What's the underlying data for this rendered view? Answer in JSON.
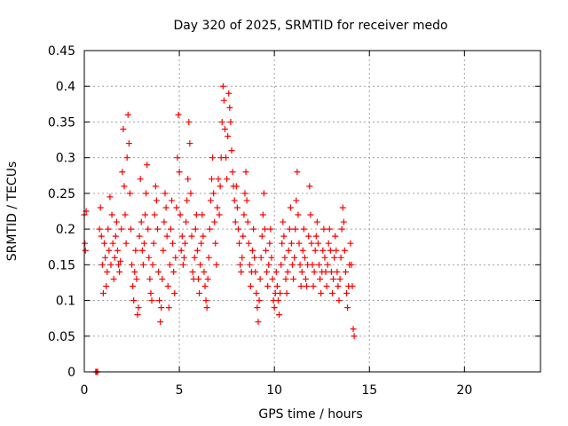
{
  "chart_data": {
    "type": "scatter",
    "title": "Day 320 of 2025, SRMTID for receiver medo",
    "xlabel": "GPS time / hours",
    "ylabel": "SRMTID / TECUs",
    "xlim": [
      0,
      24
    ],
    "ylim": [
      0,
      0.45
    ],
    "x_ticks": [
      0,
      5,
      10,
      15,
      20
    ],
    "x_tick_labels": [
      "0",
      "5",
      "10",
      "15",
      "20"
    ],
    "y_ticks": [
      0,
      0.05,
      0.1,
      0.15,
      0.2,
      0.25,
      0.3,
      0.35,
      0.4,
      0.45
    ],
    "y_tick_labels": [
      "0",
      "0.05",
      "0.1",
      "0.15",
      "0.2",
      "0.25",
      "0.3",
      "0.35",
      "0.4",
      "0.45"
    ],
    "grid": true,
    "marker": "+",
    "color": "#ff0000",
    "series": [
      {
        "name": "SRMTID",
        "x": [
          0.0,
          0.03,
          0.06,
          0.1,
          0.6,
          0.65,
          0.7,
          0.8,
          0.85,
          0.9,
          0.95,
          1.0,
          1.05,
          1.1,
          1.15,
          1.2,
          1.25,
          1.3,
          1.35,
          1.4,
          1.45,
          1.5,
          1.55,
          1.6,
          1.65,
          1.7,
          1.75,
          1.8,
          1.85,
          1.9,
          1.95,
          2.0,
          2.05,
          2.1,
          2.15,
          2.2,
          2.25,
          2.3,
          2.35,
          2.4,
          2.45,
          2.5,
          2.55,
          2.6,
          2.65,
          2.7,
          2.75,
          2.8,
          2.85,
          2.9,
          2.95,
          3.0,
          3.05,
          3.1,
          3.15,
          3.2,
          3.25,
          3.3,
          3.35,
          3.4,
          3.45,
          3.5,
          3.55,
          3.6,
          3.65,
          3.7,
          3.75,
          3.8,
          3.85,
          3.9,
          3.95,
          4.0,
          4.05,
          4.1,
          4.15,
          4.2,
          4.25,
          4.3,
          4.35,
          4.4,
          4.45,
          4.5,
          4.55,
          4.6,
          4.65,
          4.7,
          4.75,
          4.8,
          4.85,
          4.9,
          4.95,
          5.0,
          5.05,
          5.1,
          5.15,
          5.2,
          5.25,
          5.3,
          5.35,
          5.4,
          5.45,
          5.5,
          5.55,
          5.6,
          5.65,
          5.7,
          5.75,
          5.8,
          5.85,
          5.9,
          5.95,
          6.0,
          6.05,
          6.1,
          6.15,
          6.2,
          6.25,
          6.3,
          6.35,
          6.4,
          6.45,
          6.5,
          6.55,
          6.6,
          6.65,
          6.7,
          6.75,
          6.8,
          6.85,
          6.9,
          6.95,
          7.0,
          7.05,
          7.1,
          7.15,
          7.2,
          7.25,
          7.3,
          7.35,
          7.4,
          7.45,
          7.5,
          7.55,
          7.6,
          7.65,
          7.7,
          7.75,
          7.8,
          7.85,
          7.9,
          7.95,
          8.0,
          8.05,
          8.1,
          8.15,
          8.2,
          8.25,
          8.3,
          8.35,
          8.4,
          8.45,
          8.5,
          8.55,
          8.6,
          8.65,
          8.7,
          8.75,
          8.8,
          8.85,
          8.9,
          8.95,
          9.0,
          9.05,
          9.1,
          9.15,
          9.2,
          9.25,
          9.3,
          9.35,
          9.4,
          9.45,
          9.5,
          9.55,
          9.6,
          9.65,
          9.7,
          9.75,
          9.8,
          9.85,
          9.9,
          9.95,
          10.0,
          10.05,
          10.1,
          10.15,
          10.2,
          10.25,
          10.3,
          10.35,
          10.4,
          10.45,
          10.5,
          10.55,
          10.6,
          10.65,
          10.7,
          10.75,
          10.8,
          10.85,
          10.9,
          10.95,
          11.0,
          11.05,
          11.1,
          11.15,
          11.2,
          11.25,
          11.3,
          11.35,
          11.4,
          11.45,
          11.5,
          11.55,
          11.6,
          11.65,
          11.7,
          11.75,
          11.8,
          11.85,
          11.9,
          11.95,
          12.0,
          12.05,
          12.1,
          12.15,
          12.2,
          12.25,
          12.3,
          12.35,
          12.4,
          12.45,
          12.5,
          12.55,
          12.6,
          12.65,
          12.7,
          12.75,
          12.8,
          12.85,
          12.9,
          12.95,
          13.0,
          13.05,
          13.1,
          13.15,
          13.2,
          13.25,
          13.3,
          13.35,
          13.4,
          13.45,
          13.5,
          13.55,
          13.6,
          13.65,
          13.7,
          13.75,
          13.8,
          13.85,
          13.9,
          13.95,
          14.0,
          14.05,
          14.1,
          14.15,
          14.2
        ],
        "y": [
          0.22,
          0.18,
          0.17,
          0.225,
          0.0,
          0.0,
          0.0,
          0.2,
          0.23,
          0.19,
          0.15,
          0.11,
          0.18,
          0.16,
          0.12,
          0.14,
          0.2,
          0.17,
          0.245,
          0.15,
          0.22,
          0.18,
          0.13,
          0.16,
          0.19,
          0.21,
          0.17,
          0.15,
          0.14,
          0.155,
          0.2,
          0.28,
          0.34,
          0.26,
          0.22,
          0.18,
          0.3,
          0.36,
          0.32,
          0.25,
          0.2,
          0.15,
          0.12,
          0.1,
          0.14,
          0.17,
          0.13,
          0.08,
          0.09,
          0.19,
          0.27,
          0.21,
          0.17,
          0.15,
          0.18,
          0.22,
          0.25,
          0.29,
          0.2,
          0.16,
          0.13,
          0.11,
          0.1,
          0.15,
          0.18,
          0.22,
          0.26,
          0.24,
          0.2,
          0.14,
          0.1,
          0.07,
          0.09,
          0.13,
          0.17,
          0.21,
          0.25,
          0.23,
          0.19,
          0.12,
          0.09,
          0.15,
          0.2,
          0.24,
          0.18,
          0.14,
          0.11,
          0.16,
          0.23,
          0.3,
          0.36,
          0.28,
          0.22,
          0.17,
          0.19,
          0.15,
          0.16,
          0.18,
          0.21,
          0.24,
          0.27,
          0.35,
          0.32,
          0.25,
          0.19,
          0.14,
          0.13,
          0.16,
          0.2,
          0.22,
          0.17,
          0.13,
          0.11,
          0.15,
          0.18,
          0.22,
          0.19,
          0.14,
          0.12,
          0.1,
          0.09,
          0.13,
          0.16,
          0.2,
          0.24,
          0.27,
          0.3,
          0.25,
          0.21,
          0.18,
          0.15,
          0.23,
          0.27,
          0.22,
          0.26,
          0.3,
          0.35,
          0.4,
          0.38,
          0.34,
          0.3,
          0.27,
          0.33,
          0.39,
          0.37,
          0.35,
          0.31,
          0.28,
          0.26,
          0.24,
          0.21,
          0.26,
          0.23,
          0.2,
          0.18,
          0.15,
          0.14,
          0.16,
          0.19,
          0.22,
          0.25,
          0.28,
          0.24,
          0.21,
          0.18,
          0.15,
          0.12,
          0.14,
          0.17,
          0.2,
          0.16,
          0.14,
          0.11,
          0.09,
          0.07,
          0.1,
          0.13,
          0.16,
          0.19,
          0.22,
          0.25,
          0.2,
          0.17,
          0.14,
          0.12,
          0.15,
          0.18,
          0.2,
          0.16,
          0.13,
          0.1,
          0.09,
          0.11,
          0.14,
          0.12,
          0.1,
          0.08,
          0.11,
          0.15,
          0.18,
          0.21,
          0.19,
          0.16,
          0.13,
          0.11,
          0.14,
          0.17,
          0.2,
          0.23,
          0.18,
          0.15,
          0.13,
          0.16,
          0.2,
          0.24,
          0.28,
          0.22,
          0.18,
          0.15,
          0.12,
          0.14,
          0.17,
          0.2,
          0.16,
          0.13,
          0.12,
          0.15,
          0.19,
          0.26,
          0.22,
          0.18,
          0.15,
          0.12,
          0.14,
          0.17,
          0.19,
          0.21,
          0.18,
          0.15,
          0.13,
          0.11,
          0.14,
          0.17,
          0.2,
          0.16,
          0.14,
          0.12,
          0.15,
          0.18,
          0.2,
          0.17,
          0.14,
          0.11,
          0.13,
          0.16,
          0.19,
          0.17,
          0.14,
          0.12,
          0.1,
          0.13,
          0.16,
          0.2,
          0.23,
          0.21,
          0.17,
          0.14,
          0.11,
          0.09,
          0.12,
          0.15,
          0.18,
          0.15,
          0.12,
          0.06,
          0.05
        ]
      }
    ]
  }
}
